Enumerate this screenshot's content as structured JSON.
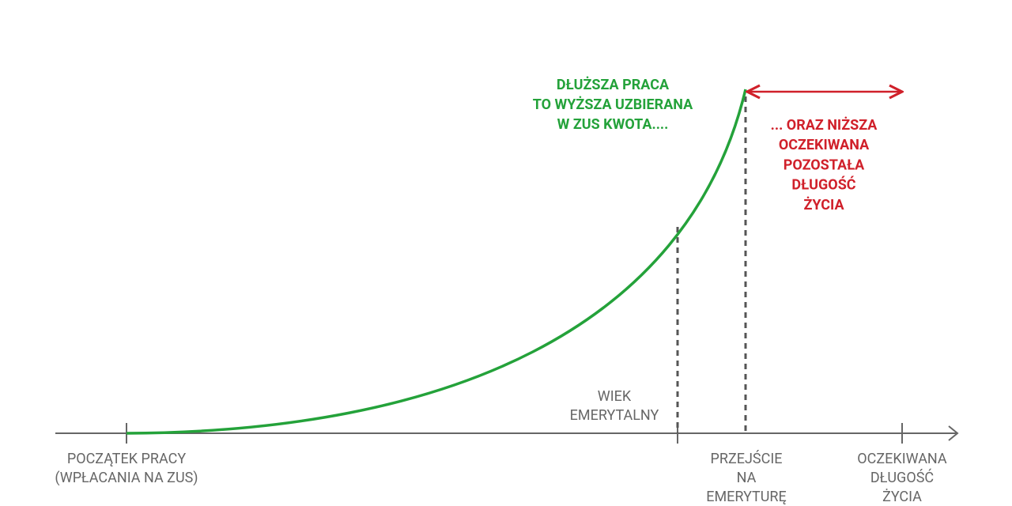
{
  "growth_note": [
    "DŁUŻSZA PRACA",
    "TO WYŻSZA UZBIERANA",
    "W ZUS KWOTA...."
  ],
  "life_note": [
    "... ORAZ NIŻSZA",
    "OCZEKIWANA",
    "POZOSTAŁA",
    "DŁUGOŚĆ",
    "ŻYCIA"
  ],
  "retirement_age": [
    "WIEK",
    "EMERYTALNY"
  ],
  "axis_labels": {
    "work_start": [
      "POCZĄTEK PRACY",
      "(WPŁACANIA NA ZUS)"
    ],
    "retirement": [
      "PRZEJŚCIE",
      "NA",
      "EMERYTURĘ"
    ],
    "life_expectancy": [
      "OCZEKIWANA",
      "DŁUGOŚĆ",
      "ŻYCIA"
    ]
  }
}
